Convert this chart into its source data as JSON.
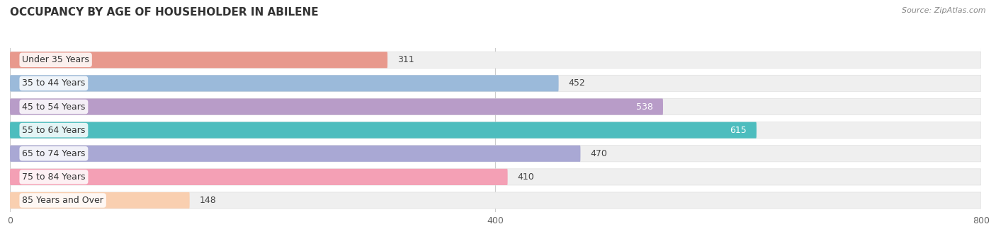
{
  "title": "OCCUPANCY BY AGE OF HOUSEHOLDER IN ABILENE",
  "source": "Source: ZipAtlas.com",
  "categories": [
    "Under 35 Years",
    "35 to 44 Years",
    "45 to 54 Years",
    "55 to 64 Years",
    "65 to 74 Years",
    "75 to 84 Years",
    "85 Years and Over"
  ],
  "values": [
    311,
    452,
    538,
    615,
    470,
    410,
    148
  ],
  "bar_colors": [
    "#E8998D",
    "#9BBADA",
    "#B89CC8",
    "#4DBDBE",
    "#A9A8D4",
    "#F4A0B5",
    "#F9CFB0"
  ],
  "bar_bg_color": "#EFEFEF",
  "label_colors": [
    "#555555",
    "#555555",
    "#ffffff",
    "#ffffff",
    "#555555",
    "#555555",
    "#555555"
  ],
  "xlim": [
    0,
    800
  ],
  "xticks": [
    0,
    400,
    800
  ],
  "background_color": "#ffffff",
  "title_fontsize": 11,
  "source_fontsize": 8,
  "bar_height": 0.7,
  "label_fontsize": 9,
  "value_fontsize": 9
}
